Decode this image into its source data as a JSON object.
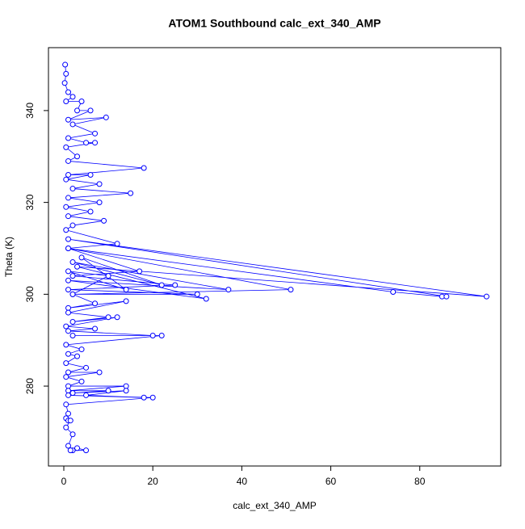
{
  "chart_data": {
    "type": "line",
    "title": "ATOM1 Southbound calc_ext_340_AMP",
    "x_label": "calc_ext_340_AMP",
    "y_label": "Theta (K)",
    "color": "#0000ff",
    "markers": true,
    "xlim": [
      -3.45,
      98.2
    ],
    "ylim": [
      262.6,
      353.7
    ],
    "xticks": [
      0,
      20,
      40,
      60,
      80
    ],
    "yticks": [
      280,
      300,
      320,
      340
    ],
    "x": [
      0.3,
      0.5,
      0.2,
      1,
      2,
      0.5,
      4,
      3,
      6,
      1,
      9.5,
      2,
      7,
      1,
      5,
      7,
      0.5,
      3,
      1,
      18,
      1,
      6,
      0.5,
      8,
      2,
      15,
      1,
      8,
      0.5,
      6,
      1,
      9,
      2,
      0.5,
      12,
      1,
      17,
      2,
      25,
      1,
      30,
      2,
      51,
      1,
      74,
      85,
      86,
      1,
      95,
      3,
      32,
      1,
      37,
      2,
      22,
      4,
      14,
      1,
      10,
      2,
      7,
      1,
      14,
      1,
      10,
      2,
      12,
      0.5,
      7,
      1,
      20,
      2,
      22,
      0.5,
      4,
      1,
      3,
      0.5,
      5,
      1,
      8,
      0.5,
      4,
      1,
      14,
      1,
      10,
      2,
      14,
      5,
      18,
      1,
      20,
      0.5,
      1,
      0.5,
      1,
      1.5,
      0.5,
      2,
      1,
      2,
      3,
      5,
      1.5
    ],
    "values": [
      350,
      348,
      346,
      344,
      343,
      342,
      342,
      340,
      340,
      338,
      338.5,
      337,
      335,
      334,
      333,
      333,
      332,
      330,
      329,
      327.5,
      326,
      326,
      325,
      324,
      323,
      322,
      321,
      320,
      319,
      318,
      317,
      316,
      315,
      314,
      311,
      310,
      305,
      304,
      302,
      301,
      300,
      300,
      301,
      310,
      300.5,
      299.5,
      299.5,
      312,
      299.5,
      306,
      299,
      303,
      301,
      307,
      302,
      308,
      301,
      305,
      304,
      300,
      298,
      297,
      298.5,
      296,
      295,
      294,
      295,
      293,
      292.5,
      292,
      291,
      291,
      291,
      289,
      288,
      287,
      286.5,
      285,
      284,
      283,
      283,
      282,
      281,
      280,
      280,
      279,
      279,
      278.5,
      279,
      278,
      277.5,
      278,
      277.5,
      276,
      274,
      273,
      272.5,
      272.5,
      271,
      269.5,
      267,
      266,
      266.5,
      266,
      266
    ]
  }
}
